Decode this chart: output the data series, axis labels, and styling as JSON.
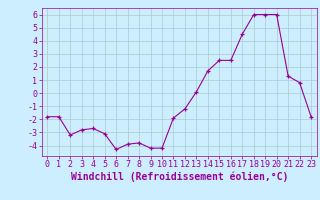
{
  "x": [
    0,
    1,
    2,
    3,
    4,
    5,
    6,
    7,
    8,
    9,
    10,
    11,
    12,
    13,
    14,
    15,
    16,
    17,
    18,
    19,
    20,
    21,
    22,
    23
  ],
  "y": [
    -1.8,
    -1.8,
    -3.2,
    -2.8,
    -2.7,
    -3.1,
    -4.3,
    -3.9,
    -3.8,
    -4.2,
    -4.2,
    -1.9,
    -1.2,
    0.1,
    1.7,
    2.5,
    2.5,
    4.5,
    6.0,
    6.0,
    6.0,
    1.3,
    0.8,
    -1.8
  ],
  "line_color": "#990099",
  "marker": "+",
  "bg_color": "#cceeff",
  "grid_color": "#aacccc",
  "xlabel": "Windchill (Refroidissement éolien,°C)",
  "ylim": [
    -4.8,
    6.5
  ],
  "xlim": [
    -0.5,
    23.5
  ],
  "yticks": [
    -4,
    -3,
    -2,
    -1,
    0,
    1,
    2,
    3,
    4,
    5,
    6
  ],
  "xticks": [
    0,
    1,
    2,
    3,
    4,
    5,
    6,
    7,
    8,
    9,
    10,
    11,
    12,
    13,
    14,
    15,
    16,
    17,
    18,
    19,
    20,
    21,
    22,
    23
  ],
  "xlabel_color": "#990099",
  "tick_color": "#990099",
  "font_size": 6.0,
  "xlabel_fontsize": 7.0
}
